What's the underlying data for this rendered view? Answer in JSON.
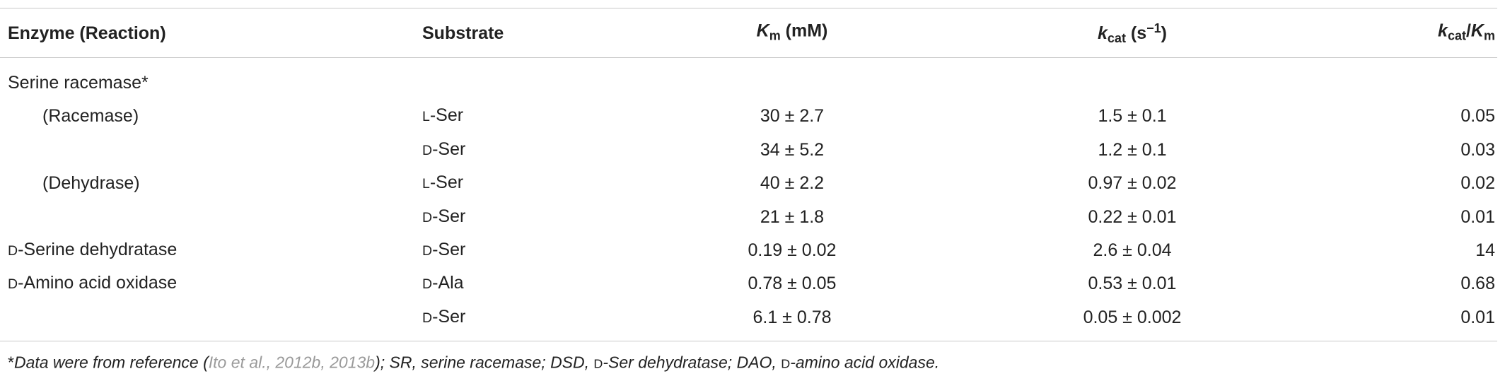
{
  "table": {
    "columns": [
      [
        {
          "text": "Enzyme (Reaction)"
        }
      ],
      [
        {
          "text": "Substrate"
        }
      ],
      [
        {
          "text": "K",
          "style": "italic"
        },
        {
          "text": "m",
          "style": "sub"
        },
        {
          "text": " (mM)"
        }
      ],
      [
        {
          "text": "k",
          "style": "italic"
        },
        {
          "text": "cat",
          "style": "sub"
        },
        {
          "text": " (s"
        },
        {
          "text": "−1",
          "style": "sup"
        },
        {
          "text": ")"
        }
      ],
      [
        {
          "text": "k",
          "style": "italic"
        },
        {
          "text": "cat",
          "style": "sub"
        },
        {
          "text": "/"
        },
        {
          "text": "K",
          "style": "italic"
        },
        {
          "text": "m",
          "style": "sub"
        }
      ]
    ],
    "rows": [
      [
        "Serine racemase*",
        null,
        null,
        null,
        null
      ],
      [
        "(Racemase)",
        "L-Ser",
        "30 ± 2.7",
        "1.5 ± 0.1",
        "0.05"
      ],
      [
        null,
        "D-Ser",
        "34 ± 5.2",
        "1.2 ± 0.1",
        "0.03"
      ],
      [
        "(Dehydrase)",
        "L-Ser",
        "40 ± 2.2",
        "0.97 ± 0.02",
        "0.02"
      ],
      [
        null,
        "D-Ser",
        "21 ± 1.8",
        "0.22 ± 0.01",
        "0.01"
      ],
      [
        "D-Serine dehydratase",
        "D-Ser",
        "0.19 ± 0.02",
        "2.6 ± 0.04",
        "14"
      ],
      [
        "D-Amino acid oxidase",
        "D-Ala",
        "0.78 ± 0.05",
        "0.53 ± 0.01",
        "0.68"
      ],
      [
        null,
        "D-Ser",
        "6.1 ± 0.78",
        "0.05 ± 0.002",
        "0.01"
      ]
    ],
    "footnote": [
      {
        "text": "*"
      },
      {
        "text": "Data were from reference (",
        "style": "italic"
      },
      {
        "text": "Ito et al., 2012b, 2013b",
        "style": "gray"
      },
      {
        "text": "); SR, serine racemase; DSD, ",
        "style": "italic"
      },
      {
        "text": "D",
        "style": "sc"
      },
      {
        "text": "-Ser dehydratase; DAO, ",
        "style": "italic"
      },
      {
        "text": "D",
        "style": "sc"
      },
      {
        "text": "-amino acid oxidase.",
        "style": "italic"
      }
    ]
  }
}
